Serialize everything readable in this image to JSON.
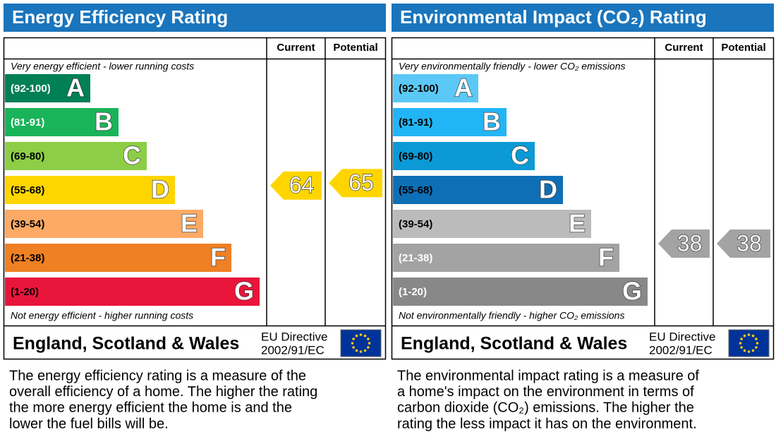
{
  "chart_data": [
    {
      "type": "rating",
      "title": "Energy Efficiency Rating",
      "columns": [
        "Current",
        "Potential"
      ],
      "top_note": "Very energy efficient - lower running costs",
      "bottom_note": "Not energy efficient - higher running costs",
      "bands": [
        {
          "range": "(92-100)",
          "letter": "A",
          "color": "#008054",
          "label_color": "#ffffff"
        },
        {
          "range": "(81-91)",
          "letter": "B",
          "color": "#19b459",
          "label_color": "#ffffff"
        },
        {
          "range": "(69-80)",
          "letter": "C",
          "color": "#8dce46",
          "label_color": "#000000"
        },
        {
          "range": "(55-68)",
          "letter": "D",
          "color": "#ffd500",
          "label_color": "#000000"
        },
        {
          "range": "(39-54)",
          "letter": "E",
          "color": "#fcaa65",
          "label_color": "#000000"
        },
        {
          "range": "(21-38)",
          "letter": "F",
          "color": "#ef8023",
          "label_color": "#000000"
        },
        {
          "range": "(1-20)",
          "letter": "G",
          "color": "#e9153b",
          "label_color": "#000000"
        }
      ],
      "values": [
        64,
        65
      ],
      "region": "England, Scotland & Wales",
      "directive": [
        "EU Directive",
        "2002/91/EC"
      ],
      "description": [
        "The energy efficiency rating is a measure of the",
        "overall efficiency of a home. The higher the rating",
        "the more energy efficient the home is and the",
        "lower the fuel bills will be."
      ]
    },
    {
      "type": "rating",
      "title": "Environmental Impact (CO₂) Rating",
      "columns": [
        "Current",
        "Potential"
      ],
      "top_note": "Very environmentally friendly - lower CO₂ emissions",
      "bottom_note": "Not environmentally friendly - higher CO₂ emissions",
      "bands": [
        {
          "range": "(92-100)",
          "letter": "A",
          "color": "#5bc8f5",
          "label_color": "#000000"
        },
        {
          "range": "(81-91)",
          "letter": "B",
          "color": "#22b5f5",
          "label_color": "#000000"
        },
        {
          "range": "(69-80)",
          "letter": "C",
          "color": "#0b9ad5",
          "label_color": "#000000"
        },
        {
          "range": "(55-68)",
          "letter": "D",
          "color": "#0e6fb7",
          "label_color": "#000000"
        },
        {
          "range": "(39-54)",
          "letter": "E",
          "color": "#bbbbbb",
          "label_color": "#000000"
        },
        {
          "range": "(21-38)",
          "letter": "F",
          "color": "#a3a3a3",
          "label_color": "#ffffff"
        },
        {
          "range": "(1-20)",
          "letter": "G",
          "color": "#888888",
          "label_color": "#ffffff"
        }
      ],
      "values": [
        38,
        38
      ],
      "region": "England, Scotland & Wales",
      "directive": [
        "EU Directive",
        "2002/91/EC"
      ],
      "description": [
        "The environmental impact rating is a measure of",
        "a home's impact on the environment in terms of",
        "carbon dioxide (CO₂) emissions. The higher the",
        "rating the less impact it has on the environment."
      ]
    }
  ]
}
